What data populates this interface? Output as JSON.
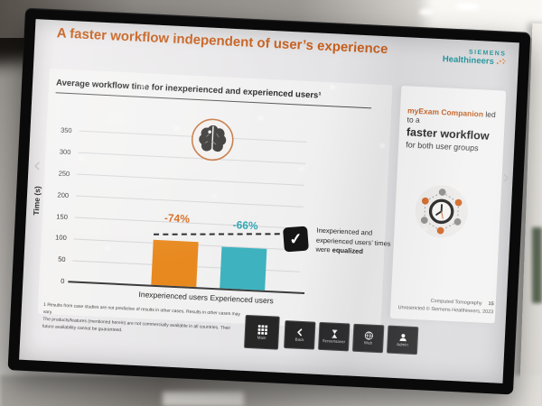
{
  "slide": {
    "title": "A faster workflow independent of user’s experience",
    "brand": {
      "line1": "SIEMENS",
      "line2": "Healthineers"
    },
    "panel": {
      "lead_highlight": "myExam Companion",
      "lead_rest": " led to a",
      "headline": "faster workflow",
      "subline": "for both user groups"
    },
    "annotation": {
      "line1": "Inexperienced and",
      "line2": "experienced users’ times",
      "line3_prefix": "were ",
      "line3_bold": "equalized"
    },
    "footnotes": [
      "1 Results from case studies are not predictive of results in other cases. Results in other cases may vary.",
      "The products/features (mentioned herein) are not commercially available in all countries. Their future availability cannot be guaranteed."
    ],
    "footer": {
      "section": "Computed Tomography",
      "page": "15",
      "copyright": "Unrestricted © Siemens Healthineers, 2023"
    }
  },
  "chart_data": {
    "type": "bar",
    "title": "Average workflow time for inexperienced and experienced users¹",
    "categories": [
      "Inexperienced users",
      "Experienced users"
    ],
    "values": [
      105,
      97
    ],
    "bar_colors": [
      "#e8891f",
      "#3eb3bf"
    ],
    "data_labels": [
      "-74%",
      "-66%"
    ],
    "xlabel": "",
    "ylabel": "Time (s)",
    "yticks": [
      350,
      300,
      250,
      200,
      150,
      100,
      50,
      0
    ],
    "ylim": [
      0,
      350
    ],
    "grid": true,
    "legend": "none",
    "annotation_dashed_line_y": 100
  },
  "toolbar": {
    "buttons": [
      {
        "label": "Main",
        "icon": "grid-icon"
      },
      {
        "label": "Back",
        "icon": "back-icon"
      },
      {
        "label": "Screensaver",
        "icon": "hourglass-icon"
      },
      {
        "label": "Web",
        "icon": "globe-icon"
      },
      {
        "label": "Admin",
        "icon": "admin-icon"
      }
    ]
  },
  "icons": {
    "check": "✓",
    "chevron_left": "‹",
    "chevron_right": "›"
  },
  "colors": {
    "title_orange": "#c55f1d",
    "brand_petrol": "#0f8e94",
    "pct_orange": "#d4691d",
    "pct_teal": "#2ba6b4"
  }
}
